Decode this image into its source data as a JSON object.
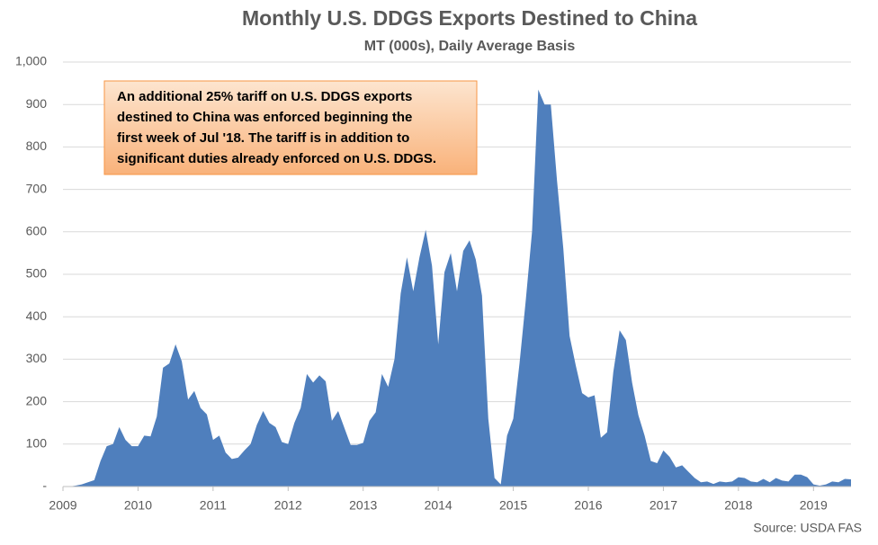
{
  "chart_data": {
    "type": "area",
    "title": "Monthly U.S. DDGS Exports Destined to China",
    "subtitle": "MT (000s), Daily  Average Basis",
    "annotation": [
      "An additional 25% tariff on U.S. DDGS exports",
      "destined to China was enforced beginning the",
      "first week of Jul '18. The tariff is in addition to",
      "significant duties already enforced on U.S. DDGS."
    ],
    "source": "Source: USDA FAS",
    "color": "#4f7fbd",
    "grid": true,
    "xlim": [
      2009,
      2019.5
    ],
    "xticks": [
      2009,
      2010,
      2011,
      2012,
      2013,
      2014,
      2015,
      2016,
      2017,
      2018,
      2019
    ],
    "ylim": [
      0,
      1000
    ],
    "yticks": [
      {
        "value": 0,
        "label": "-"
      },
      100,
      200,
      300,
      400,
      500,
      600,
      700,
      800,
      900,
      {
        "value": 1000,
        "label": "1,000"
      }
    ],
    "x": [
      2009,
      2009.083,
      2009.167,
      2009.25,
      2009.333,
      2009.417,
      2009.5,
      2009.583,
      2009.667,
      2009.75,
      2009.833,
      2009.917,
      2010,
      2010.083,
      2010.167,
      2010.25,
      2010.333,
      2010.417,
      2010.5,
      2010.583,
      2010.667,
      2010.75,
      2010.833,
      2010.917,
      2011,
      2011.083,
      2011.167,
      2011.25,
      2011.333,
      2011.417,
      2011.5,
      2011.583,
      2011.667,
      2011.75,
      2011.833,
      2011.917,
      2012,
      2012.083,
      2012.167,
      2012.25,
      2012.333,
      2012.417,
      2012.5,
      2012.583,
      2012.667,
      2012.75,
      2012.833,
      2012.917,
      2013,
      2013.083,
      2013.167,
      2013.25,
      2013.333,
      2013.417,
      2013.5,
      2013.583,
      2013.667,
      2013.75,
      2013.833,
      2013.917,
      2014,
      2014.083,
      2014.167,
      2014.25,
      2014.333,
      2014.417,
      2014.5,
      2014.583,
      2014.667,
      2014.75,
      2014.833,
      2014.917,
      2015,
      2015.083,
      2015.167,
      2015.25,
      2015.333,
      2015.417,
      2015.5,
      2015.583,
      2015.667,
      2015.75,
      2015.833,
      2015.917,
      2016,
      2016.083,
      2016.167,
      2016.25,
      2016.333,
      2016.417,
      2016.5,
      2016.583,
      2016.667,
      2016.75,
      2016.833,
      2016.917,
      2017,
      2017.083,
      2017.167,
      2017.25,
      2017.333,
      2017.417,
      2017.5,
      2017.583,
      2017.667,
      2017.75,
      2017.833,
      2017.917,
      2018,
      2018.083,
      2018.167,
      2018.25,
      2018.333,
      2018.417,
      2018.5,
      2018.583,
      2018.667,
      2018.75,
      2018.833,
      2018.917,
      2019,
      2019.083,
      2019.167,
      2019.25,
      2019.333,
      2019.417,
      2019.5
    ],
    "values": [
      0,
      0,
      2,
      5,
      10,
      15,
      60,
      95,
      100,
      140,
      110,
      95,
      95,
      120,
      118,
      165,
      280,
      290,
      335,
      295,
      205,
      225,
      185,
      170,
      110,
      120,
      80,
      65,
      68,
      85,
      100,
      145,
      178,
      150,
      140,
      105,
      100,
      150,
      185,
      265,
      245,
      262,
      248,
      155,
      178,
      138,
      98,
      98,
      103,
      155,
      175,
      265,
      235,
      300,
      455,
      540,
      460,
      540,
      605,
      520,
      335,
      505,
      550,
      460,
      555,
      580,
      535,
      450,
      160,
      20,
      5,
      120,
      160,
      290,
      440,
      600,
      935,
      900,
      900,
      720,
      560,
      355,
      285,
      220,
      210,
      215,
      115,
      128,
      270,
      368,
      345,
      245,
      168,
      120,
      60,
      55,
      85,
      70,
      45,
      50,
      35,
      20,
      10,
      12,
      6,
      12,
      10,
      12,
      22,
      20,
      12,
      10,
      18,
      10,
      20,
      14,
      12,
      28,
      28,
      22,
      5,
      2,
      5,
      12,
      10,
      18,
      17
    ]
  }
}
